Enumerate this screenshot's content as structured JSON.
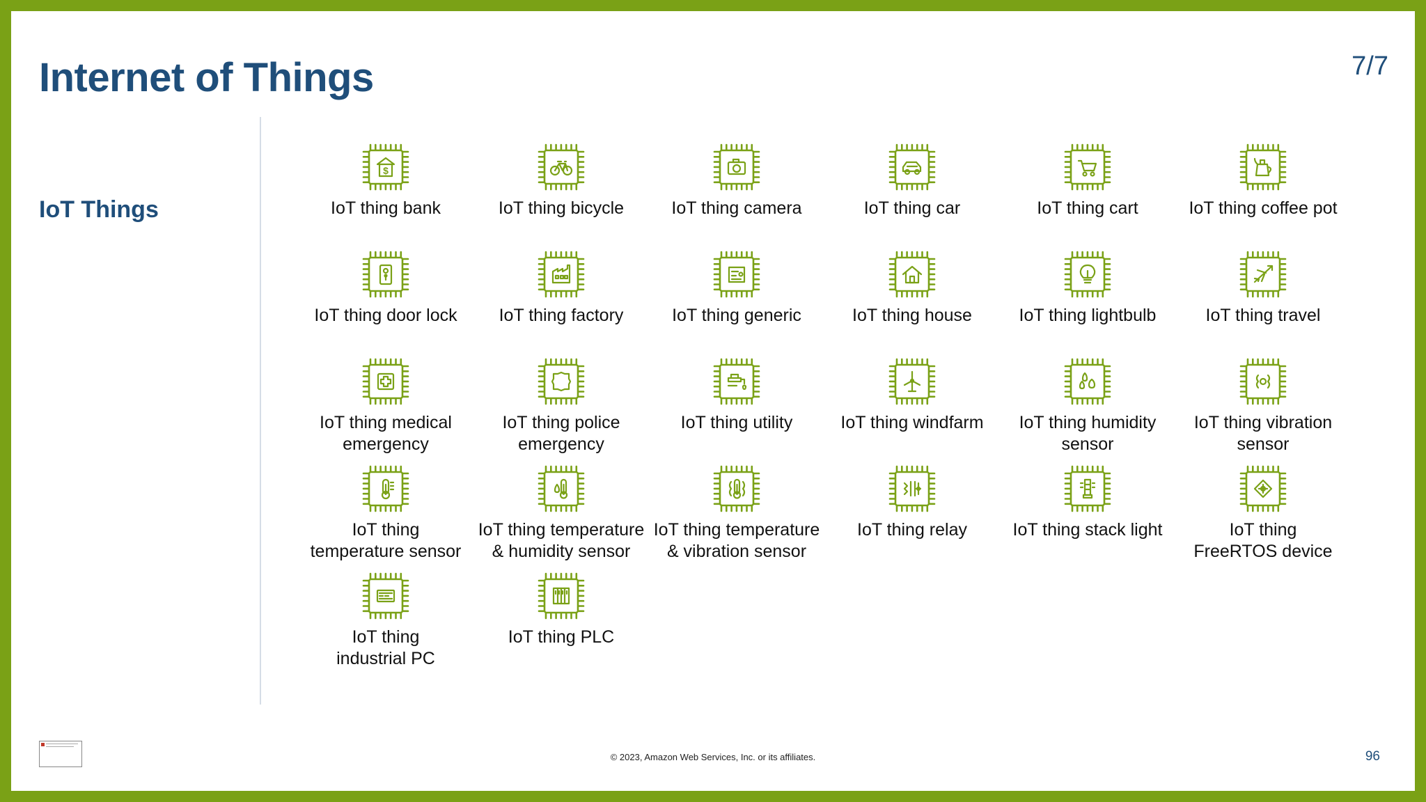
{
  "slide": {
    "title": "Internet of Things",
    "pager": "7/7",
    "section_label": "IoT Things",
    "copyright": "© 2023, Amazon Web Services, Inc. or its affiliates.",
    "page_number": "96",
    "accent_color": "#7aa116",
    "title_color": "#1f4e7a"
  },
  "items": [
    {
      "label": "IoT thing bank",
      "icon": "bank"
    },
    {
      "label": "IoT thing bicycle",
      "icon": "bicycle"
    },
    {
      "label": "IoT thing camera",
      "icon": "camera"
    },
    {
      "label": "IoT thing car",
      "icon": "car"
    },
    {
      "label": "IoT thing cart",
      "icon": "cart"
    },
    {
      "label": "IoT thing coffee pot",
      "icon": "coffee-pot"
    },
    {
      "label": "IoT thing door lock",
      "icon": "door-lock"
    },
    {
      "label": "IoT thing factory",
      "icon": "factory"
    },
    {
      "label": "IoT thing generic",
      "icon": "generic"
    },
    {
      "label": "IoT thing house",
      "icon": "house"
    },
    {
      "label": "IoT thing lightbulb",
      "icon": "lightbulb"
    },
    {
      "label": "IoT thing travel",
      "icon": "travel"
    },
    {
      "label": "IoT thing medical\nemergency",
      "icon": "medical"
    },
    {
      "label": "IoT thing police\nemergency",
      "icon": "police"
    },
    {
      "label": "IoT thing utility",
      "icon": "utility"
    },
    {
      "label": "IoT thing windfarm",
      "icon": "windfarm"
    },
    {
      "label": "IoT thing humidity\nsensor",
      "icon": "humidity"
    },
    {
      "label": "IoT thing vibration\nsensor",
      "icon": "vibration"
    },
    {
      "label": "IoT thing\ntemperature sensor",
      "icon": "temperature"
    },
    {
      "label": "IoT thing temperature\n& humidity sensor",
      "icon": "temp-humidity"
    },
    {
      "label": "IoT thing temperature\n& vibration sensor",
      "icon": "temp-vibration"
    },
    {
      "label": "IoT thing relay",
      "icon": "relay"
    },
    {
      "label": "IoT thing stack light",
      "icon": "stack-light"
    },
    {
      "label": "IoT thing\nFreeRTOS device",
      "icon": "freertos"
    },
    {
      "label": "IoT thing\nindustrial PC",
      "icon": "industrial-pc"
    },
    {
      "label": "IoT thing PLC",
      "icon": "plc"
    }
  ]
}
